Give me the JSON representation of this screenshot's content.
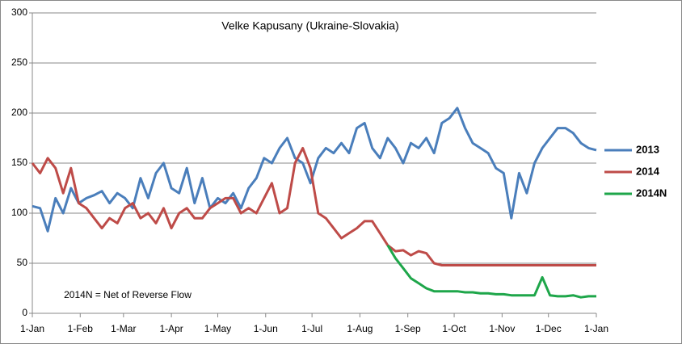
{
  "chart_data": {
    "type": "line",
    "title": "Velke Kapusany (Ukraine-Slovakia)",
    "annotation": "2014N = Net of Reverse Flow",
    "x": [
      0,
      5,
      10,
      15,
      20,
      25,
      30,
      35,
      40,
      45,
      50,
      55,
      60,
      65,
      70,
      75,
      80,
      85,
      90,
      95,
      100,
      105,
      110,
      115,
      120,
      125,
      130,
      135,
      140,
      145,
      150,
      155,
      160,
      165,
      170,
      175,
      180,
      185,
      190,
      195,
      200,
      205,
      210,
      215,
      220,
      225,
      230,
      235,
      240,
      245,
      250,
      255,
      260,
      265,
      270,
      275,
      280,
      285,
      290,
      295,
      300,
      305,
      310,
      315,
      320,
      325,
      330,
      335,
      340,
      345,
      350,
      355,
      360,
      365
    ],
    "xlim": [
      0,
      365
    ],
    "xticks": [
      {
        "value": 0,
        "label": "1-Jan"
      },
      {
        "value": 31,
        "label": "1-Feb"
      },
      {
        "value": 59,
        "label": "1-Mar"
      },
      {
        "value": 90,
        "label": "1-Apr"
      },
      {
        "value": 120,
        "label": "1-May"
      },
      {
        "value": 151,
        "label": "1-Jun"
      },
      {
        "value": 181,
        "label": "1-Jul"
      },
      {
        "value": 212,
        "label": "1-Aug"
      },
      {
        "value": 243,
        "label": "1-Sep"
      },
      {
        "value": 273,
        "label": "1-Oct"
      },
      {
        "value": 304,
        "label": "1-Nov"
      },
      {
        "value": 334,
        "label": "1-Dec"
      },
      {
        "value": 365,
        "label": "1-Jan"
      }
    ],
    "ylim": [
      0,
      300
    ],
    "yticks": [
      0,
      50,
      100,
      150,
      200,
      250,
      300
    ],
    "grid": true,
    "series": [
      {
        "name": "2013",
        "color": "#4a7ebb",
        "values": [
          107,
          105,
          82,
          115,
          100,
          125,
          110,
          115,
          118,
          122,
          110,
          120,
          115,
          105,
          135,
          115,
          140,
          150,
          125,
          120,
          145,
          110,
          135,
          105,
          115,
          110,
          120,
          105,
          125,
          135,
          155,
          150,
          165,
          175,
          155,
          150,
          130,
          155,
          165,
          160,
          170,
          160,
          185,
          190,
          165,
          155,
          175,
          165,
          150,
          170,
          165,
          175,
          160,
          190,
          195,
          205,
          185,
          170,
          165,
          160,
          145,
          140,
          95,
          140,
          120,
          150,
          165,
          175,
          185,
          185,
          180,
          170,
          165,
          163
        ]
      },
      {
        "name": "2014",
        "color": "#be4b48",
        "values": [
          150,
          140,
          155,
          145,
          120,
          145,
          110,
          105,
          95,
          85,
          95,
          90,
          105,
          110,
          95,
          100,
          90,
          105,
          85,
          100,
          105,
          95,
          95,
          105,
          110,
          115,
          115,
          100,
          105,
          100,
          115,
          130,
          100,
          105,
          150,
          165,
          145,
          100,
          95,
          85,
          75,
          80,
          85,
          92,
          92,
          80,
          68,
          62,
          63,
          58,
          62,
          60,
          50,
          48,
          48,
          48,
          48,
          48,
          48,
          48,
          48,
          48,
          48,
          48,
          48,
          48,
          48,
          48,
          48,
          48,
          48,
          48,
          48,
          48
        ]
      },
      {
        "name": "2014N",
        "color": "#1ea64a",
        "values": [
          null,
          null,
          null,
          null,
          null,
          null,
          null,
          null,
          null,
          null,
          null,
          null,
          null,
          null,
          null,
          null,
          null,
          null,
          null,
          null,
          null,
          null,
          null,
          null,
          null,
          null,
          null,
          null,
          null,
          null,
          null,
          null,
          null,
          null,
          null,
          null,
          null,
          null,
          null,
          null,
          null,
          null,
          null,
          null,
          null,
          null,
          68,
          55,
          45,
          35,
          30,
          25,
          22,
          22,
          22,
          22,
          21,
          21,
          20,
          20,
          19,
          19,
          18,
          18,
          18,
          18,
          36,
          18,
          17,
          17,
          18,
          16,
          17,
          17
        ]
      }
    ]
  }
}
